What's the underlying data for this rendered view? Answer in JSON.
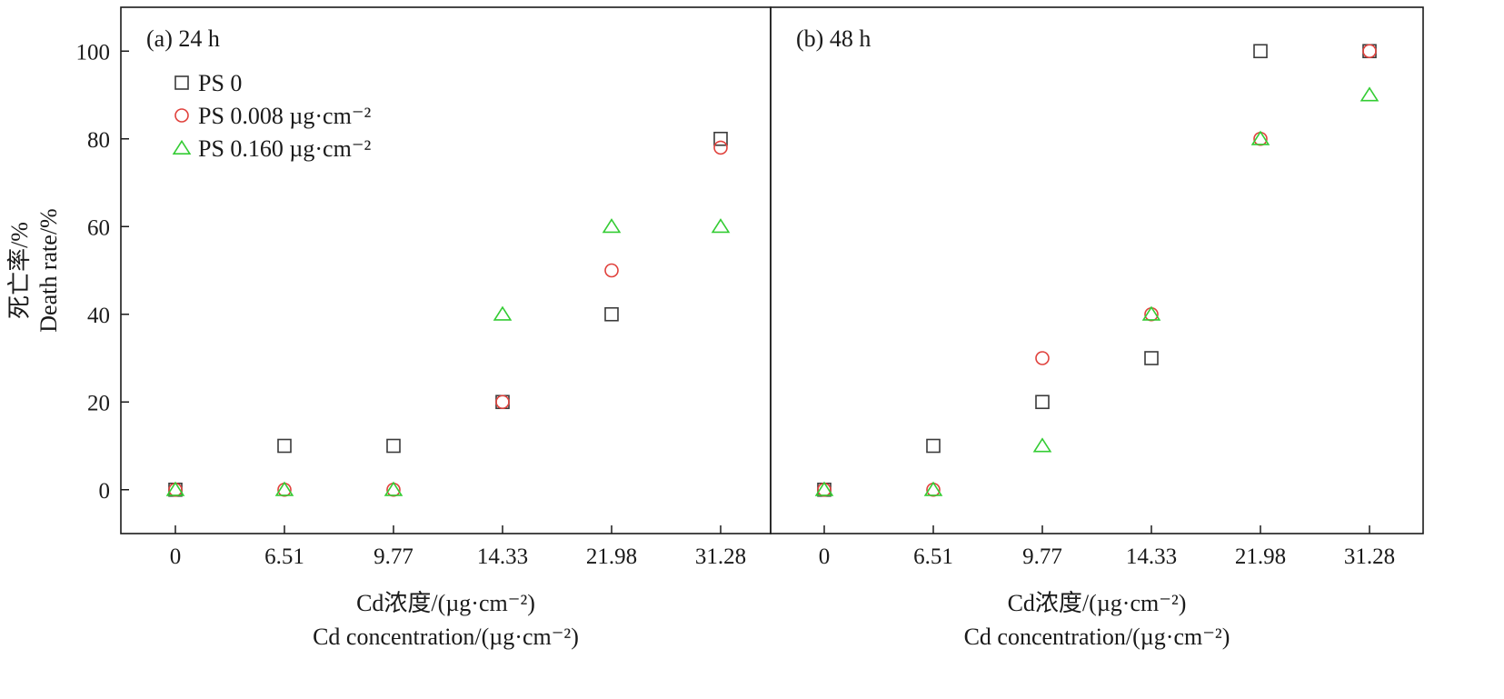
{
  "chart_data": [
    {
      "type": "scatter",
      "title": "(a) 24 h",
      "x_tick_labels": [
        "0",
        "6.51",
        "9.77",
        "14.33",
        "21.98",
        "31.28"
      ],
      "xlabel_zh": "Cd浓度/(µg·cm⁻²)",
      "xlabel_en": "Cd concentration/(µg·cm⁻²)",
      "ylabel_zh": "死亡率/%",
      "ylabel_en": "Death rate/%",
      "ylim": [
        -10,
        110
      ],
      "y_ticks": [
        0,
        20,
        40,
        60,
        80,
        100
      ],
      "grid": false,
      "legend_position": "top-left",
      "series": [
        {
          "name": "PS 0",
          "marker": "square",
          "color": "#3a3a3a",
          "values": [
            0,
            10,
            10,
            20,
            40,
            80
          ]
        },
        {
          "name": "PS 0.008 µg·cm⁻²",
          "marker": "circle",
          "color": "#e0413c",
          "values": [
            0,
            0,
            0,
            20,
            50,
            78
          ]
        },
        {
          "name": "PS 0.160 µg·cm⁻²",
          "marker": "triangle",
          "color": "#33cc33",
          "values": [
            0,
            0,
            0,
            40,
            60,
            60
          ]
        }
      ]
    },
    {
      "type": "scatter",
      "title": "(b) 48 h",
      "x_tick_labels": [
        "0",
        "6.51",
        "9.77",
        "14.33",
        "21.98",
        "31.28"
      ],
      "xlabel_zh": "Cd浓度/(µg·cm⁻²)",
      "xlabel_en": "Cd concentration/(µg·cm⁻²)",
      "ylim": [
        -10,
        110
      ],
      "y_ticks": [
        0,
        20,
        40,
        60,
        80,
        100
      ],
      "grid": false,
      "series": [
        {
          "name": "PS 0",
          "marker": "square",
          "color": "#3a3a3a",
          "values": [
            0,
            10,
            20,
            30,
            100,
            100
          ]
        },
        {
          "name": "PS 0.008 µg·cm⁻²",
          "marker": "circle",
          "color": "#e0413c",
          "values": [
            0,
            0,
            30,
            40,
            80,
            100
          ]
        },
        {
          "name": "PS 0.160 µg·cm⁻²",
          "marker": "triangle",
          "color": "#33cc33",
          "values": [
            0,
            0,
            10,
            40,
            80,
            90
          ]
        }
      ]
    }
  ]
}
